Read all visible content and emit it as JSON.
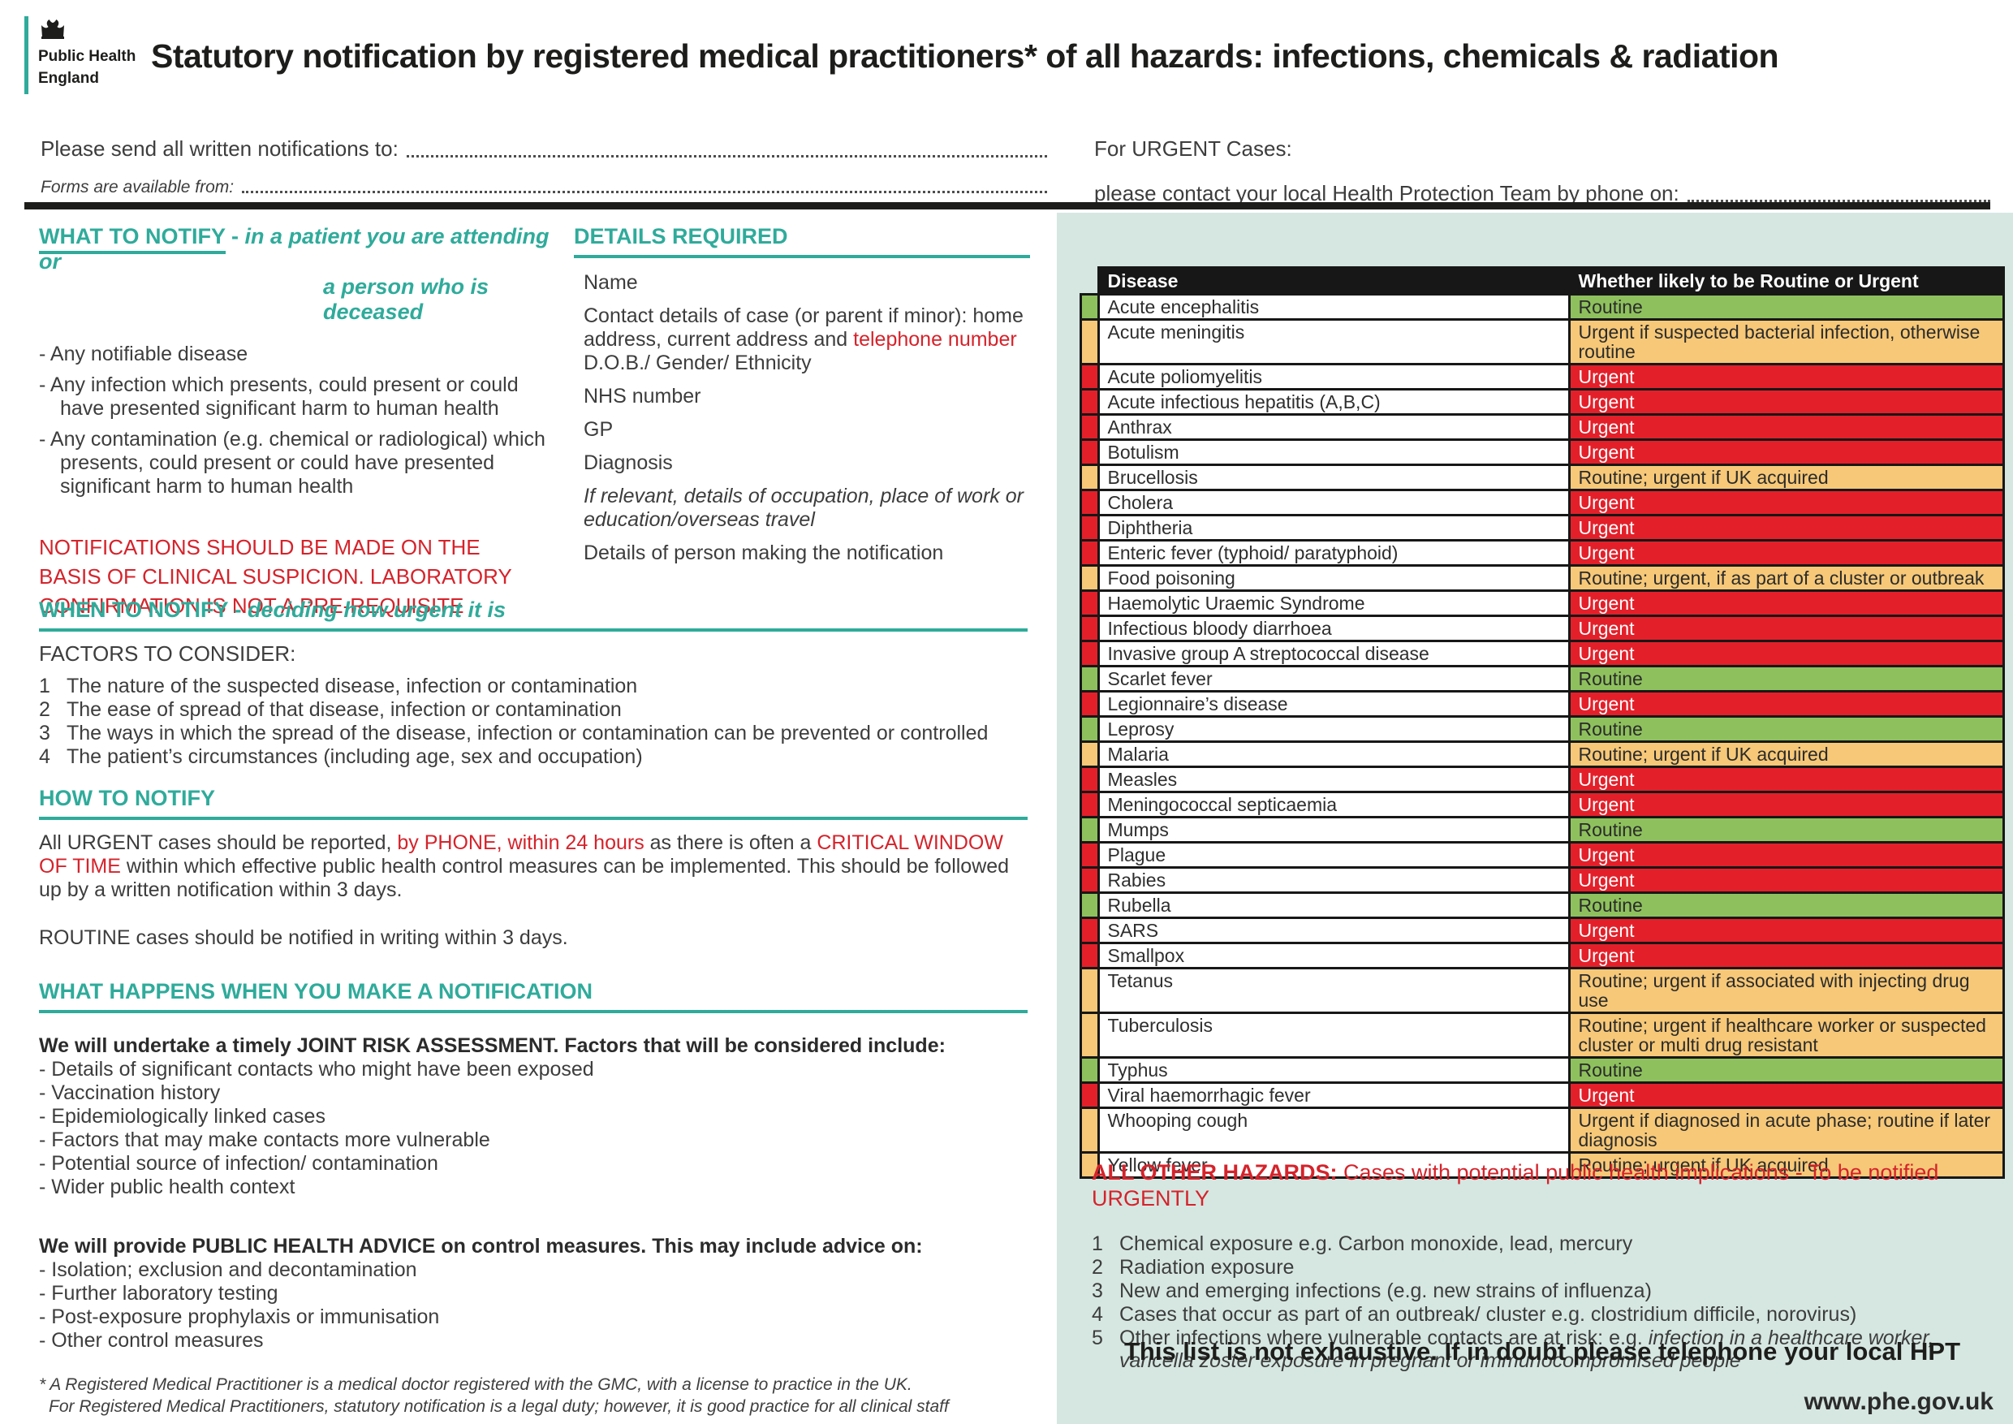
{
  "logo": {
    "org_line1": "Public Health",
    "org_line2": "England"
  },
  "header": {
    "title": "Statutory notification by registered medical practitioners* of all hazards: infections, chemicals & radiation"
  },
  "contact": {
    "send_to_label": "Please send all written notifications to:",
    "forms_label": "Forms are available from:",
    "urgent_title": "For URGENT Cases:",
    "urgent_phone_label": "please contact your local Health Protection Team by phone on:"
  },
  "what_to_notify": {
    "heading": "WHAT TO NOTIFY",
    "heading_dash": " - ",
    "subheading_line1": "in a patient you are attending or",
    "subheading_line2": "a person who is deceased",
    "bullets": [
      "- Any notifiable disease",
      "- Any infection which presents, could present or could have presented significant harm to human health",
      "- Any contamination (e.g. chemical or radiological) which presents, could present or could have presented significant harm to human health"
    ],
    "warning_lines": [
      "NOTIFICATIONS SHOULD BE MADE ON THE",
      "BASIS OF CLINICAL SUSPICION. LABORATORY",
      "CONFIRMATION IS NOT A PRE-REQUISITE"
    ]
  },
  "details_required": {
    "heading": "DETAILS REQUIRED",
    "item_name": "Name",
    "item_contact_pre": "Contact details of case (or parent if minor): home address, current address and ",
    "item_contact_highlight": "telephone number",
    "item_dob": "D.O.B./ Gender/ Ethnicity",
    "item_nhs": "NHS number",
    "item_gp": "GP",
    "item_diagnosis": "Diagnosis",
    "item_occupation": "If relevant, details of occupation, place of work or education/overseas travel",
    "item_person": "Details of person making the notification"
  },
  "when_to_notify": {
    "heading": "WHEN TO NOTIFY - ",
    "heading_italic": "deciding how urgent it is",
    "factors_label": "FACTORS TO CONSIDER:",
    "factors": [
      {
        "num": "1",
        "text": "The nature of the suspected disease, infection or contamination"
      },
      {
        "num": "2",
        "text": "The ease of spread of that disease, infection or contamination"
      },
      {
        "num": "3",
        "text": "The ways in which the spread of the disease, infection or contamination can be prevented or controlled"
      },
      {
        "num": "4",
        "text": "The patient’s circumstances (including age, sex and occupation)"
      }
    ]
  },
  "how_to_notify": {
    "heading": "HOW TO NOTIFY",
    "p1_s1": "All URGENT cases should be reported, ",
    "p1_r1": "by PHONE, within 24 hours",
    "p1_s2": " as there is often a ",
    "p1_r2": "CRITICAL WINDOW OF TIME",
    "p1_s3": " within which effective public health control measures can be implemented. This should be followed up by a written notification within 3 days.",
    "p2": "ROUTINE cases should be notified in writing within 3 days."
  },
  "what_happens": {
    "heading": "WHAT HAPPENS WHEN YOU MAKE A NOTIFICATION",
    "assessment_intro": "We will undertake a timely JOINT RISK ASSESSMENT. Factors that will be considered include:",
    "assessment_bullets": [
      "- Details of significant contacts who might have been exposed",
      "- Vaccination history",
      "- Epidemiologically linked cases",
      "- Factors that may make contacts more vulnerable",
      "- Potential source of infection/ contamination",
      "- Wider public health context"
    ],
    "advice_intro": "We will provide PUBLIC HEALTH ADVICE on control measures. This may include advice on:",
    "advice_bullets": [
      "- Isolation; exclusion and decontamination",
      "- Further laboratory testing",
      "- Post-exposure prophylaxis or immunisation",
      "- Other control measures"
    ]
  },
  "footnote": {
    "line1": "* A Registered Medical Practitioner is a medical doctor registered with the GMC, with a license to practice in the UK.",
    "line2": "For Registered Medical Practitioners, statutory notification is a legal duty; however, it is good practice for all clinical staff"
  },
  "table": {
    "headers": [
      "Disease",
      "Whether likely to be Routine or Urgent"
    ],
    "rows": [
      {
        "disease": "Acute encephalitis",
        "status": "Routine",
        "level": "routine"
      },
      {
        "disease": "Acute meningitis",
        "status": "Urgent if suspected bacterial infection, otherwise routine",
        "level": "conditional"
      },
      {
        "disease": "Acute poliomyelitis",
        "status": "Urgent",
        "level": "urgent"
      },
      {
        "disease": "Acute infectious hepatitis (A,B,C)",
        "status": "Urgent",
        "level": "urgent"
      },
      {
        "disease": "Anthrax",
        "status": "Urgent",
        "level": "urgent"
      },
      {
        "disease": "Botulism",
        "status": "Urgent",
        "level": "urgent"
      },
      {
        "disease": "Brucellosis",
        "status": "Routine; urgent if UK acquired",
        "level": "conditional"
      },
      {
        "disease": "Cholera",
        "status": "Urgent",
        "level": "urgent"
      },
      {
        "disease": "Diphtheria",
        "status": "Urgent",
        "level": "urgent"
      },
      {
        "disease": "Enteric fever (typhoid/ paratyphoid)",
        "status": "Urgent",
        "level": "urgent"
      },
      {
        "disease": "Food poisoning",
        "status": "Routine; urgent, if as part of a cluster or outbreak",
        "level": "conditional"
      },
      {
        "disease": "Haemolytic Uraemic Syndrome",
        "status": "Urgent",
        "level": "urgent"
      },
      {
        "disease": "Infectious bloody diarrhoea",
        "status": "Urgent",
        "level": "urgent"
      },
      {
        "disease": "Invasive group A streptococcal disease",
        "status": "Urgent",
        "level": "urgent"
      },
      {
        "disease": "Scarlet fever",
        "status": "Routine",
        "level": "routine"
      },
      {
        "disease": "Legionnaire’s disease",
        "status": "Urgent",
        "level": "urgent"
      },
      {
        "disease": "Leprosy",
        "status": "Routine",
        "level": "routine"
      },
      {
        "disease": "Malaria",
        "status": "Routine; urgent if UK acquired",
        "level": "conditional"
      },
      {
        "disease": "Measles",
        "status": "Urgent",
        "level": "urgent"
      },
      {
        "disease": "Meningococcal septicaemia",
        "status": "Urgent",
        "level": "urgent"
      },
      {
        "disease": "Mumps",
        "status": "Routine",
        "level": "routine"
      },
      {
        "disease": "Plague",
        "status": "Urgent",
        "level": "urgent"
      },
      {
        "disease": "Rabies",
        "status": "Urgent",
        "level": "urgent"
      },
      {
        "disease": "Rubella",
        "status": "Routine",
        "level": "routine"
      },
      {
        "disease": "SARS",
        "status": "Urgent",
        "level": "urgent"
      },
      {
        "disease": "Smallpox",
        "status": "Urgent",
        "level": "urgent"
      },
      {
        "disease": "Tetanus",
        "status": "Routine; urgent if associated with injecting drug use",
        "level": "conditional"
      },
      {
        "disease": "Tuberculosis",
        "status": "Routine; urgent if healthcare worker or suspected cluster or multi drug resistant",
        "level": "conditional"
      },
      {
        "disease": "Typhus",
        "status": "Routine",
        "level": "routine"
      },
      {
        "disease": "Viral haemorrhagic fever",
        "status": "Urgent",
        "level": "urgent"
      },
      {
        "disease": "Whooping cough",
        "status": "Urgent if diagnosed in acute phase; routine if later diagnosis",
        "level": "conditional"
      },
      {
        "disease": "Yellow fever",
        "status": "Routine; urgent if UK acquired",
        "level": "conditional"
      }
    ]
  },
  "other_hazards": {
    "heading_bold": "ALL OTHER HAZARDS:",
    "heading_rest": " Cases with potential public health implications - To be notified URGENTLY",
    "items": [
      {
        "num": "1",
        "text": "Chemical exposure e.g. Carbon monoxide, lead, mercury"
      },
      {
        "num": "2",
        "text": "Radiation exposure"
      },
      {
        "num": "3",
        "text": "New and emerging infections (e.g. new strains of influenza)"
      },
      {
        "num": "4",
        "text": "Cases that occur as part of an outbreak/ cluster e.g. clostridium difficile, norovirus)"
      },
      {
        "num": "5",
        "pre": "Other infections where vulnerable contacts are at risk: e.g. ",
        "italic": "infection in a healthcare worker, varicella zoster exposure in pregnant or immunocompromised people"
      }
    ]
  },
  "footer": {
    "closing": "This list is not exhaustive. If in doubt please telephone your local HPT",
    "website": "www.phe.gov.uk"
  },
  "colors": {
    "teal_accent": "#2fab9b",
    "red_text": "#d5232b",
    "urgent_cell": "#e3202a",
    "conditional_cell": "#f6c878",
    "routine_cell": "#8ec15d",
    "panel_background": "#d6e7e2",
    "header_row": "#171717"
  }
}
